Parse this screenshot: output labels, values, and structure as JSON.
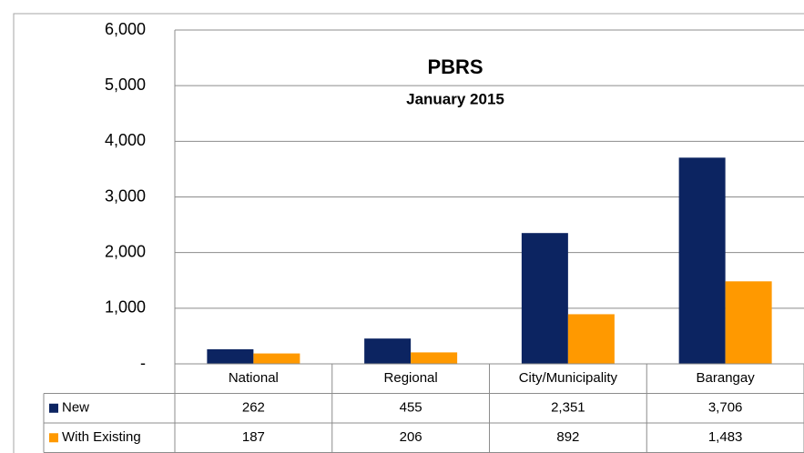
{
  "chart_data": {
    "type": "bar",
    "title": "PBRS",
    "subtitle": "January 2015",
    "categories": [
      "National",
      "Regional",
      "City/Municipality",
      "Barangay"
    ],
    "series": [
      {
        "name": "New",
        "color": "#0c2461",
        "values": [
          262,
          455,
          2351,
          3706
        ],
        "value_labels": [
          "262",
          "455",
          "2,351",
          "3,706"
        ]
      },
      {
        "name": "With Existing",
        "color": "#ff9900",
        "values": [
          187,
          206,
          892,
          1483
        ],
        "value_labels": [
          "187",
          "206",
          "892",
          "1,483"
        ]
      }
    ],
    "ylim": [
      0,
      6000
    ],
    "yticks": [
      {
        "value": 0,
        "label": "-"
      },
      {
        "value": 1000,
        "label": "1,000"
      },
      {
        "value": 2000,
        "label": "2,000"
      },
      {
        "value": 3000,
        "label": "3,000"
      },
      {
        "value": 4000,
        "label": "4,000"
      },
      {
        "value": 5000,
        "label": "5,000"
      },
      {
        "value": 6000,
        "label": "6,000"
      }
    ],
    "grid": true
  }
}
